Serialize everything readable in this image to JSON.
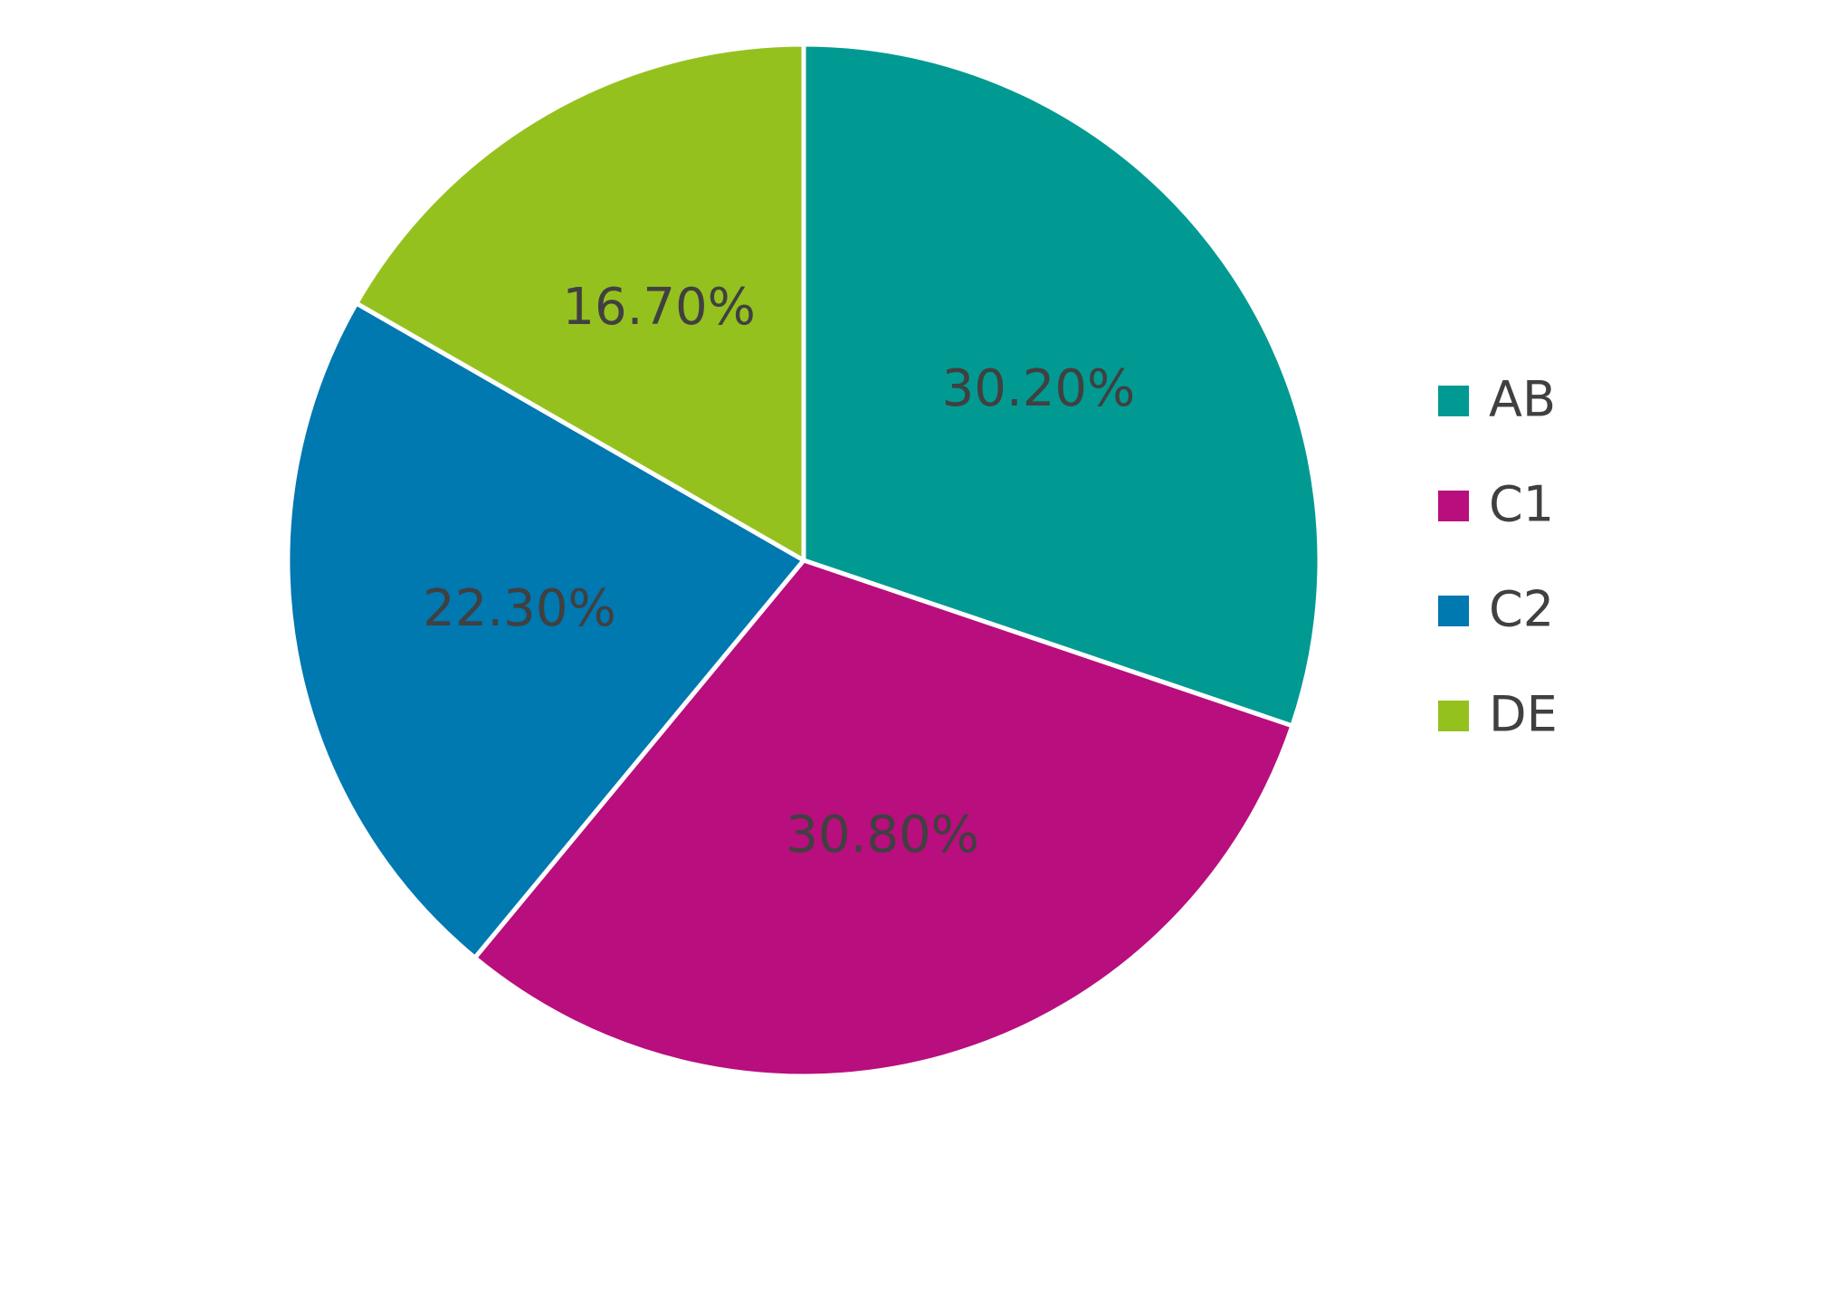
{
  "chart_data": {
    "type": "pie",
    "categories": [
      "AB",
      "C1",
      "C2",
      "DE"
    ],
    "values": [
      30.2,
      30.8,
      22.3,
      16.7
    ],
    "value_labels": [
      "30.20%",
      "30.80%",
      "22.30%",
      "16.70%"
    ],
    "colors": [
      "#009a92",
      "#b80e7e",
      "#0078b0",
      "#95c11f"
    ],
    "legend": "right"
  }
}
